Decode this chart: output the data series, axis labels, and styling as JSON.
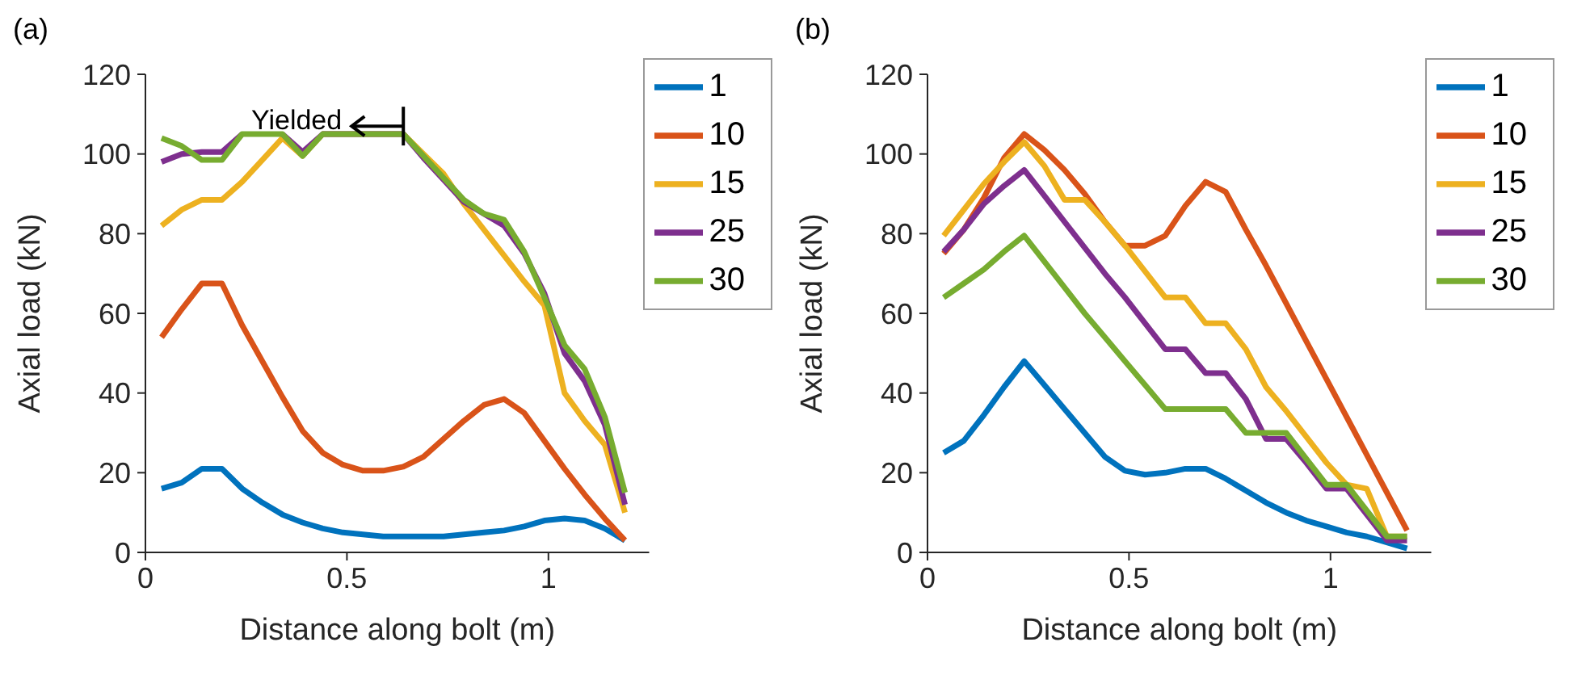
{
  "chart_data": [
    {
      "type": "line",
      "title": "(a)",
      "xlabel": "Distance along bolt (m)",
      "ylabel": "Axial load (kN)",
      "x": [
        0.04,
        0.09,
        0.14,
        0.19,
        0.24,
        0.29,
        0.34,
        0.39,
        0.44,
        0.49,
        0.54,
        0.59,
        0.64,
        0.69,
        0.74,
        0.79,
        0.84,
        0.89,
        0.94,
        0.99,
        1.04,
        1.09,
        1.14,
        1.19
      ],
      "series": [
        {
          "name": "1",
          "color": "#0072bd",
          "values": [
            16,
            17.5,
            21,
            21,
            16,
            12.5,
            9.5,
            7.5,
            6,
            5,
            4.5,
            4,
            4,
            4,
            4,
            4.5,
            5,
            5.5,
            6.5,
            8,
            8.5,
            8,
            6,
            3
          ]
        },
        {
          "name": "10",
          "color": "#d95319",
          "values": [
            54,
            61,
            67.5,
            67.5,
            57,
            48,
            39,
            30.5,
            25,
            22,
            20.5,
            20.5,
            21.5,
            24,
            28.5,
            33,
            37,
            38.5,
            35,
            28,
            21,
            14.5,
            8.5,
            3
          ]
        },
        {
          "name": "15",
          "color": "#edb120",
          "values": [
            82,
            86,
            88.5,
            88.5,
            93,
            98.5,
            104,
            99.5,
            105,
            105,
            105,
            105,
            105,
            100,
            95,
            87.5,
            81,
            74.5,
            68,
            62,
            40,
            33,
            27,
            10
          ]
        },
        {
          "name": "25",
          "color": "#7e2f8e",
          "values": [
            98,
            100,
            100.5,
            100.5,
            105,
            null,
            105,
            100.5,
            105,
            105,
            105,
            105,
            105,
            99,
            93.5,
            88,
            85,
            82,
            75,
            65,
            50,
            43,
            32,
            12
          ]
        },
        {
          "name": "30",
          "color": "#77ac30",
          "values": [
            104,
            102,
            98.5,
            98.5,
            105,
            105,
            105,
            99.5,
            105,
            105,
            105,
            105,
            105,
            99.5,
            94,
            88.5,
            85,
            83.5,
            75.5,
            64,
            52,
            46,
            34,
            15
          ]
        }
      ],
      "annotations": [
        {
          "text": "Yielded",
          "x": 0.64,
          "y": 107
        }
      ],
      "xlim": [
        0,
        1.25
      ],
      "xticks": [
        0,
        0.5,
        1
      ],
      "ylim": [
        0,
        120
      ],
      "yticks": [
        0,
        20,
        40,
        60,
        80,
        100,
        120
      ],
      "legend": "top right",
      "grid": false,
      "marker": "none",
      "line_style": "solid"
    },
    {
      "type": "line",
      "title": "(b)",
      "xlabel": "Distance along bolt (m)",
      "ylabel": "Axial load (kN)",
      "x": [
        0.04,
        0.09,
        0.14,
        0.19,
        0.24,
        0.29,
        0.34,
        0.39,
        0.44,
        0.49,
        0.54,
        0.59,
        0.64,
        0.69,
        0.74,
        0.79,
        0.84,
        0.89,
        0.94,
        0.99,
        1.04,
        1.09,
        1.14,
        1.19
      ],
      "series": [
        {
          "name": "1",
          "color": "#0072bd",
          "values": [
            25,
            28,
            34.5,
            41.5,
            48,
            42,
            36,
            30,
            24,
            20.5,
            19.5,
            20,
            21,
            21,
            18.5,
            15.5,
            12.5,
            10,
            8,
            6.5,
            5,
            4,
            2.5,
            1
          ]
        },
        {
          "name": "10",
          "color": "#d95319",
          "values": [
            75,
            81,
            89,
            99,
            105,
            101,
            96,
            90,
            83,
            77,
            77,
            79.5,
            87,
            93,
            90.5,
            81,
            72,
            62.5,
            53,
            43.5,
            34,
            24.5,
            15,
            5.5
          ]
        },
        {
          "name": "15",
          "color": "#edb120",
          "values": [
            79.5,
            86,
            92.5,
            98,
            103,
            97,
            88.5,
            88.5,
            83,
            77,
            70.5,
            64,
            64,
            57.5,
            57.5,
            51,
            41.5,
            35.5,
            29,
            22.5,
            17,
            16,
            4,
            4
          ]
        },
        {
          "name": "25",
          "color": "#7e2f8e",
          "values": [
            75.5,
            81,
            87.5,
            92,
            96,
            89.5,
            83,
            76.5,
            70,
            64,
            57.5,
            51,
            51,
            45,
            45,
            38.5,
            28.5,
            28.5,
            22.5,
            16,
            16,
            9.5,
            3,
            3
          ]
        },
        {
          "name": "30",
          "color": "#77ac30",
          "values": [
            64,
            67.5,
            71,
            75.5,
            79.5,
            73,
            66.5,
            60,
            54,
            48,
            42,
            36,
            36,
            36,
            36,
            30,
            30,
            30,
            23.5,
            17,
            17,
            10.5,
            4,
            4
          ]
        }
      ],
      "xlim": [
        0,
        1.25
      ],
      "xticks": [
        0,
        0.5,
        1
      ],
      "ylim": [
        0,
        120
      ],
      "yticks": [
        0,
        20,
        40,
        60,
        80,
        100,
        120
      ],
      "legend": "top right",
      "grid": false,
      "marker": "none",
      "line_style": "solid"
    }
  ]
}
